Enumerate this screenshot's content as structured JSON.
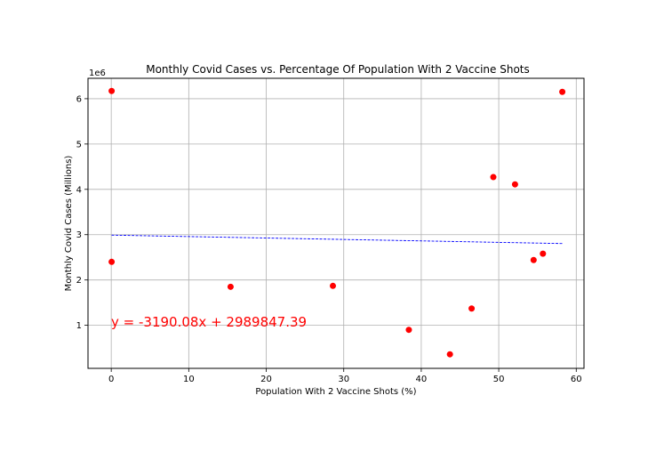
{
  "chart_data": {
    "type": "scatter",
    "title": "Monthly Covid Cases vs. Percentage Of Population With 2 Vaccine Shots",
    "xlabel": "Population With 2 Vaccine Shots (%)",
    "ylabel": "Monthly Covid Cases (Millions)",
    "y_offset_label": "1e6",
    "xlim": [
      -3,
      61
    ],
    "ylim": [
      0.05,
      6.45
    ],
    "xticks": [
      0,
      10,
      20,
      30,
      40,
      50,
      60
    ],
    "yticks": [
      1,
      2,
      3,
      4,
      5,
      6
    ],
    "grid": true,
    "points": [
      {
        "x": 0.05,
        "y": 6.17
      },
      {
        "x": 0.05,
        "y": 2.4
      },
      {
        "x": 15.4,
        "y": 1.85
      },
      {
        "x": 28.6,
        "y": 1.87
      },
      {
        "x": 38.4,
        "y": 0.9
      },
      {
        "x": 43.7,
        "y": 0.36
      },
      {
        "x": 46.5,
        "y": 1.37
      },
      {
        "x": 49.3,
        "y": 4.27
      },
      {
        "x": 52.1,
        "y": 4.11
      },
      {
        "x": 54.5,
        "y": 2.44
      },
      {
        "x": 55.7,
        "y": 2.58
      },
      {
        "x": 58.2,
        "y": 6.15
      }
    ],
    "point_color": "#ff0000",
    "regression": {
      "slope": -3190.08,
      "intercept": 2989847.39,
      "x_range": [
        0.05,
        58.2
      ],
      "color": "#0000ff",
      "equation_label": "y = -3190.08x + 2989847.39",
      "equation_color": "#ff0000"
    }
  }
}
